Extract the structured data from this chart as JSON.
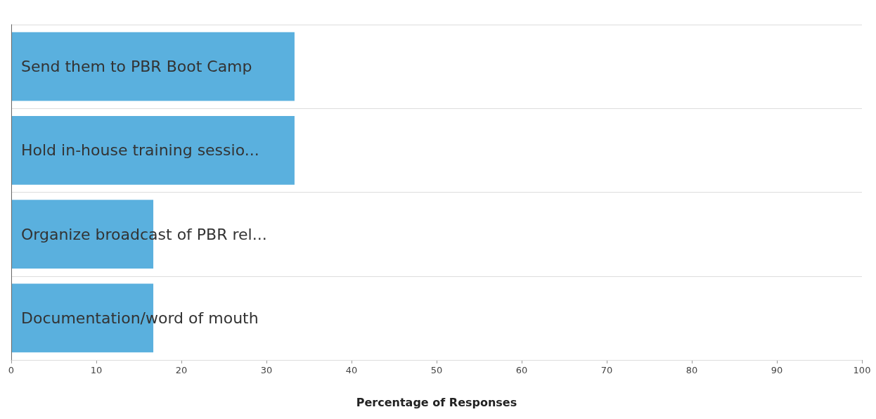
{
  "chart_data": {
    "type": "bar",
    "orientation": "horizontal",
    "xlabel": "Percentage of Responses",
    "categories": [
      "Send them to PBR Boot Camp",
      "Hold in-house training sessio...",
      "Organize broadcast of PBR rel...",
      "Documentation/word of mouth"
    ],
    "values": [
      33.3,
      33.3,
      16.7,
      16.7
    ],
    "color": "#5ab0de",
    "xlim": [
      0,
      100
    ],
    "xticks": [
      0,
      10,
      20,
      30,
      40,
      50,
      60,
      70,
      80,
      90,
      100
    ],
    "grid": "y"
  }
}
